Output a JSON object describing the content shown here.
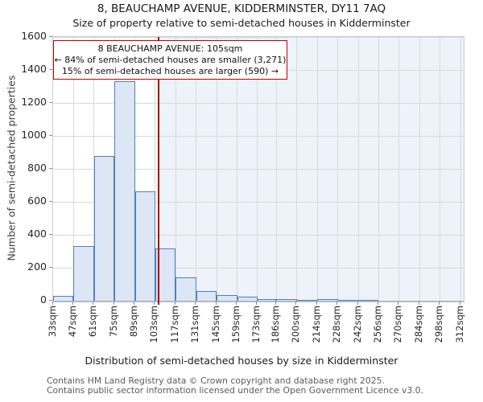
{
  "chart_data": {
    "type": "bar",
    "title": "8, BEAUCHAMP AVENUE, KIDDERMINSTER, DY11 7AQ",
    "subtitle": "Size of property relative to semi-detached houses in Kidderminster",
    "xlabel": "Distribution of semi-detached houses by size in Kidderminster",
    "ylabel": "Number of semi-detached properties",
    "bin_edges_sqm": [
      33,
      47,
      61,
      75,
      89,
      103,
      117,
      131,
      145,
      159,
      173,
      186,
      200,
      214,
      228,
      242,
      256,
      270,
      284,
      298,
      312
    ],
    "x_tick_labels": [
      "33sqm",
      "47sqm",
      "61sqm",
      "75sqm",
      "89sqm",
      "103sqm",
      "117sqm",
      "131sqm",
      "145sqm",
      "159sqm",
      "173sqm",
      "186sqm",
      "200sqm",
      "214sqm",
      "228sqm",
      "242sqm",
      "256sqm",
      "270sqm",
      "284sqm",
      "298sqm",
      "312sqm"
    ],
    "values": [
      30,
      330,
      880,
      1330,
      665,
      315,
      140,
      60,
      35,
      25,
      12,
      8,
      4,
      10,
      3,
      3,
      0,
      0,
      0,
      0
    ],
    "y_ticks": [
      0,
      200,
      400,
      600,
      800,
      1000,
      1200,
      1400,
      1600
    ],
    "ylim": [
      0,
      1600
    ],
    "grid": true,
    "legend": "none",
    "marker": {
      "value_sqm": 105,
      "color": "#b00000"
    },
    "highlight_region": {
      "from_sqm": 105,
      "to_sqm": 312,
      "color": "#eef2fb"
    },
    "colors": {
      "bar_fill": "#dce6f5",
      "bar_edge": "#4f81bd",
      "gridline": "#d9d9d9"
    }
  },
  "annotation": {
    "line1": "8 BEAUCHAMP AVENUE: 105sqm",
    "line2": "← 84% of semi-detached houses are smaller (3,271)",
    "line3": "15% of semi-detached houses are larger (590) →"
  },
  "footer": {
    "line1": "Contains HM Land Registry data © Crown copyright and database right 2025.",
    "line2": "Contains public sector information licensed under the Open Government Licence v3.0."
  }
}
